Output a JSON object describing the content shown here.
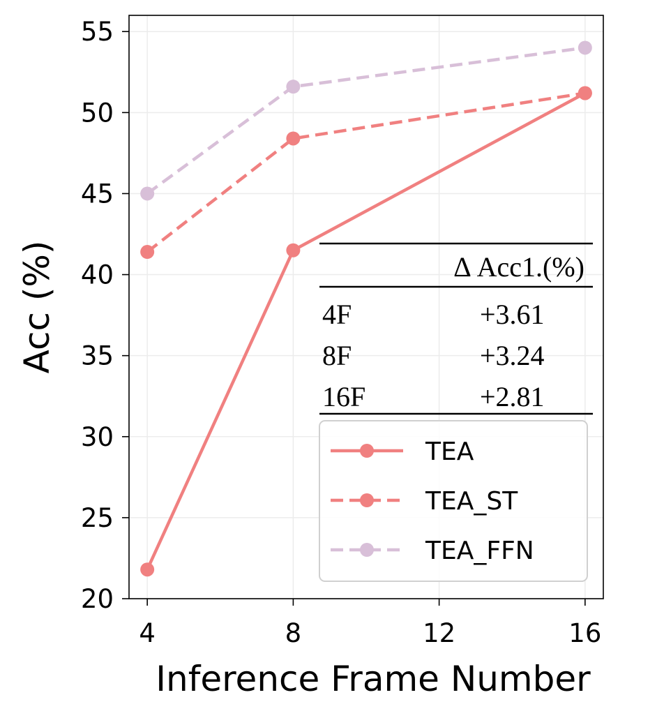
{
  "chart_data": {
    "type": "line",
    "title": "",
    "xlabel": "Inference Frame Number",
    "ylabel": "Acc (%)",
    "xticks": [
      4,
      8,
      12,
      16
    ],
    "yticks": [
      20,
      25,
      30,
      35,
      40,
      45,
      50,
      55
    ],
    "xlim": [
      3.5,
      16.5
    ],
    "ylim": [
      20,
      56
    ],
    "grid": true,
    "legend_position": "lower-right",
    "x": [
      4,
      8,
      16
    ],
    "series": [
      {
        "name": "TEA",
        "values": [
          21.8,
          41.5,
          51.2
        ],
        "color": "#f08080",
        "style": "solid"
      },
      {
        "name": "TEA_ST",
        "values": [
          41.4,
          48.4,
          51.2
        ],
        "color": "#f08080",
        "style": "dashed"
      },
      {
        "name": "TEA_FFN",
        "values": [
          45.0,
          51.6,
          54.0
        ],
        "color": "#d8bfd8",
        "style": "dashed"
      }
    ],
    "inset_table": {
      "header": "Δ Acc1.(%)",
      "rows": [
        {
          "label": "4F",
          "value": "+3.61"
        },
        {
          "label": "8F",
          "value": "+3.24"
        },
        {
          "label": "16F",
          "value": "+2.81"
        }
      ]
    }
  }
}
